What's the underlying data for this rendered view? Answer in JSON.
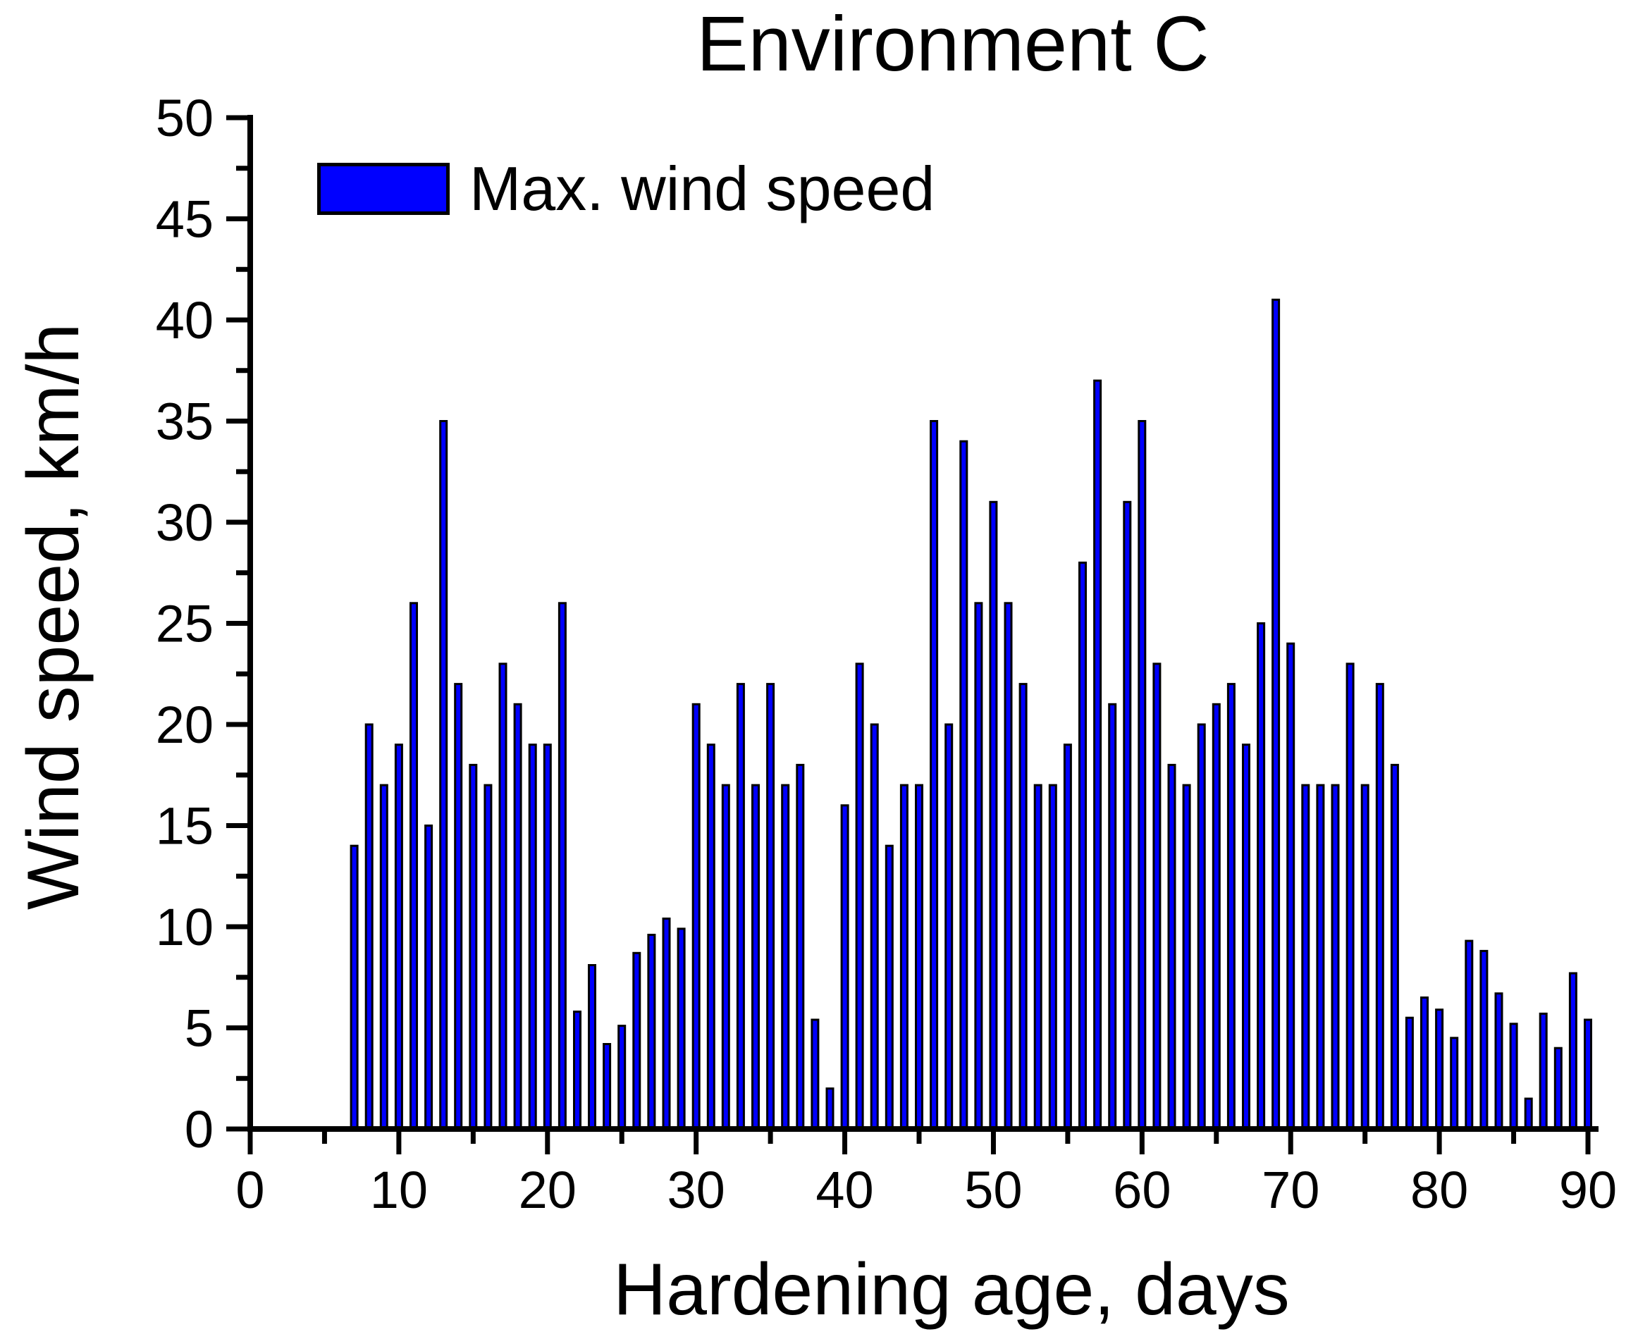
{
  "title": "Environment C",
  "legend": {
    "label": "Max. wind speed",
    "swatch_color": "#0000ff",
    "swatch_border": "#000000"
  },
  "y_axis": {
    "label": "Wind speed, km/h",
    "major_ticks": [
      0,
      5,
      10,
      15,
      20,
      25,
      30,
      35,
      40,
      45,
      50
    ]
  },
  "x_axis": {
    "label": "Hardening age, days",
    "major_ticks": [
      0,
      10,
      20,
      30,
      40,
      50,
      60,
      70,
      80,
      90
    ]
  },
  "chart_data": {
    "type": "bar",
    "title": "Environment C",
    "xlabel": "Hardening age, days",
    "ylabel": "Wind speed, km/h",
    "legend_entries": [
      "Max. wind speed"
    ],
    "legend_position": "top-left",
    "grid": false,
    "xlim": [
      0,
      92
    ],
    "ylim": [
      0,
      50
    ],
    "x_major_step": 10,
    "x_minor_step": 5,
    "y_major_step": 5,
    "y_minor_step": 2.5,
    "bar_color": "#0000ff",
    "bar_edge_color": "#000000",
    "x": [
      7,
      8,
      9,
      10,
      11,
      12,
      13,
      14,
      15,
      16,
      17,
      18,
      19,
      20,
      21,
      22,
      23,
      24,
      25,
      26,
      27,
      28,
      29,
      30,
      31,
      32,
      33,
      34,
      35,
      36,
      37,
      38,
      39,
      40,
      41,
      42,
      43,
      44,
      45,
      46,
      47,
      48,
      49,
      50,
      51,
      52,
      53,
      54,
      55,
      56,
      57,
      58,
      59,
      60,
      61,
      62,
      63,
      64,
      65,
      66,
      67,
      68,
      69,
      70,
      71,
      72,
      73,
      74,
      75,
      76,
      77,
      78,
      79,
      80,
      81,
      82,
      83,
      84,
      85,
      86,
      87,
      88,
      89,
      90
    ],
    "values": [
      14,
      20,
      17,
      19,
      26,
      15,
      35,
      22,
      18,
      17,
      23,
      21,
      19,
      19,
      26,
      5.8,
      8.1,
      4.2,
      5.1,
      8.7,
      9.6,
      10.4,
      9.9,
      21,
      19,
      17,
      22,
      17,
      22,
      17,
      18,
      5.4,
      2,
      16,
      23,
      20,
      14,
      17,
      17,
      35,
      20,
      34,
      26,
      31,
      26,
      22,
      17,
      17,
      19,
      28,
      37,
      21,
      31,
      35,
      23,
      18,
      17,
      20,
      21,
      22,
      19,
      25,
      41,
      24,
      17,
      17,
      17,
      23,
      17,
      22,
      18,
      5.5,
      6.5,
      5.9,
      4.5,
      9.3,
      8.8,
      6.7,
      5.2,
      1.5,
      5.7,
      4,
      7.7,
      5.4
    ]
  }
}
